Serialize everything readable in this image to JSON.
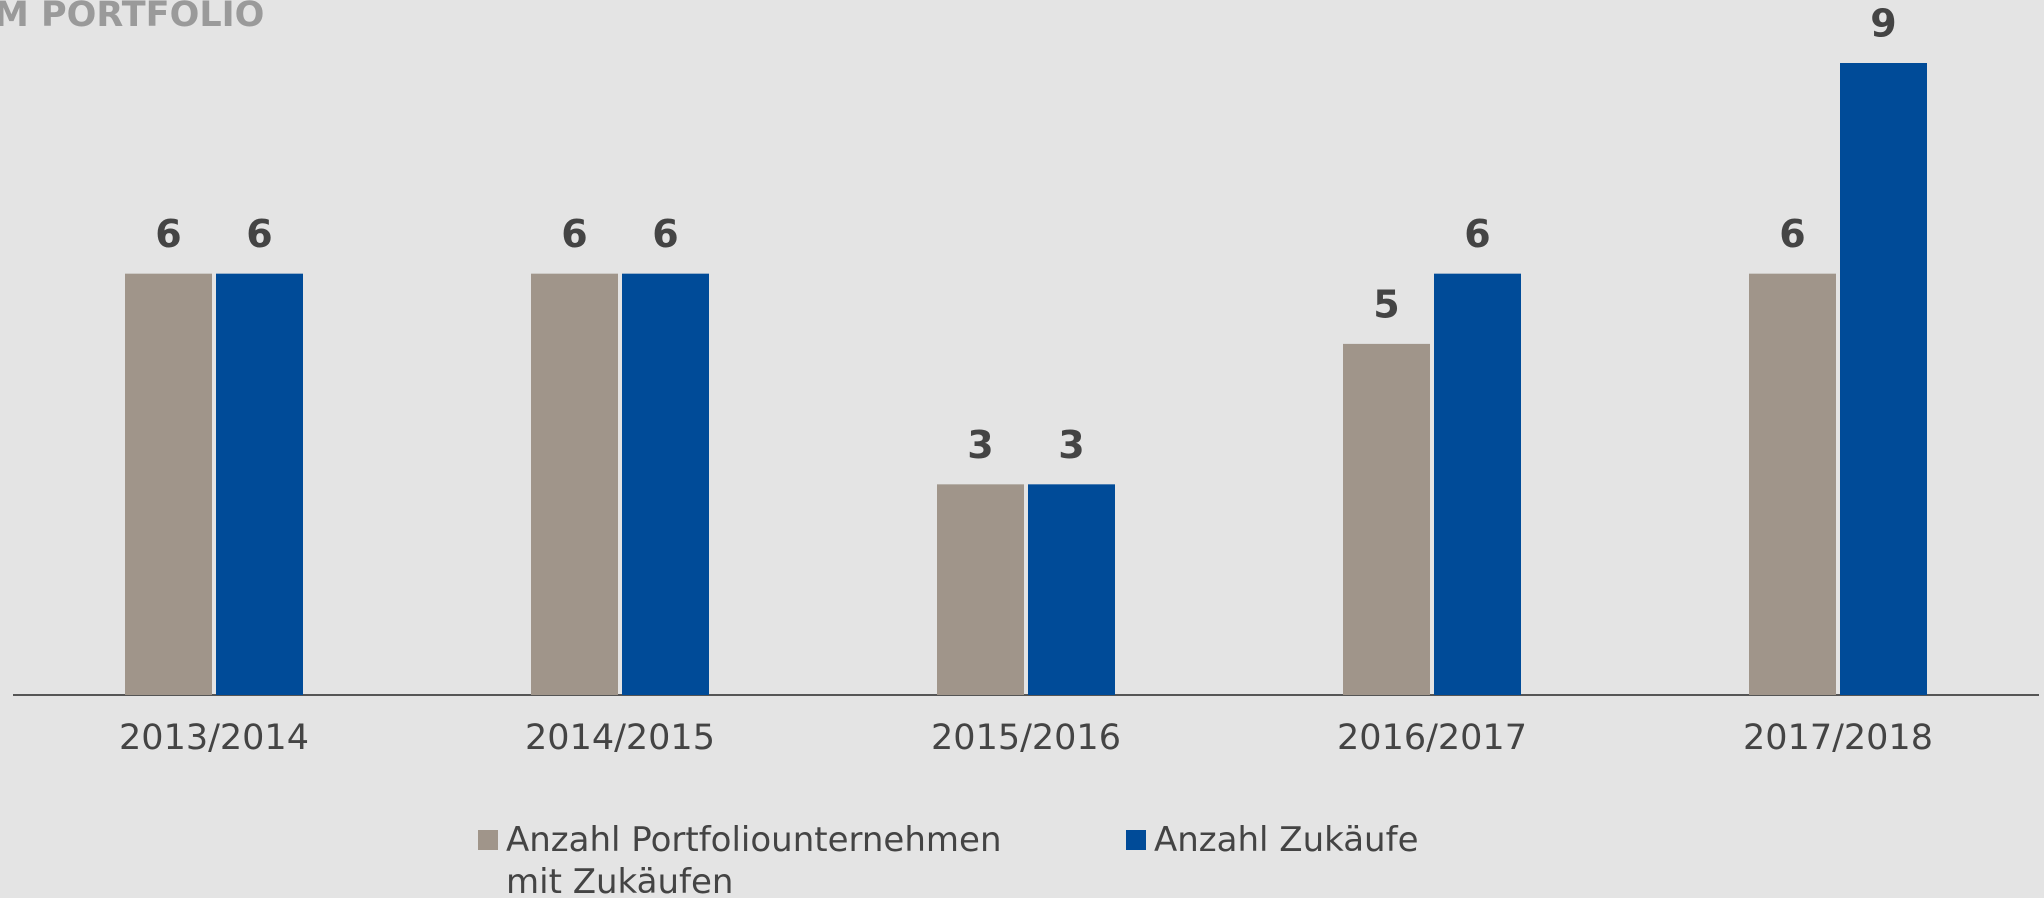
{
  "chart_data": {
    "type": "bar",
    "title": "M PORTFOLIO",
    "categories": [
      "2013/2014",
      "2014/2015",
      "2015/2016",
      "2016/2017",
      "2017/2018"
    ],
    "series": [
      {
        "name": "Anzahl Portfoliounternehmen mit Zukäufen",
        "color": "#a0958a",
        "values": [
          6,
          6,
          3,
          5,
          6
        ]
      },
      {
        "name": "Anzahl Zukäufe",
        "color": "#004b98",
        "values": [
          6,
          6,
          3,
          6,
          9
        ]
      }
    ],
    "ylim": [
      0,
      9
    ],
    "grid": false
  }
}
